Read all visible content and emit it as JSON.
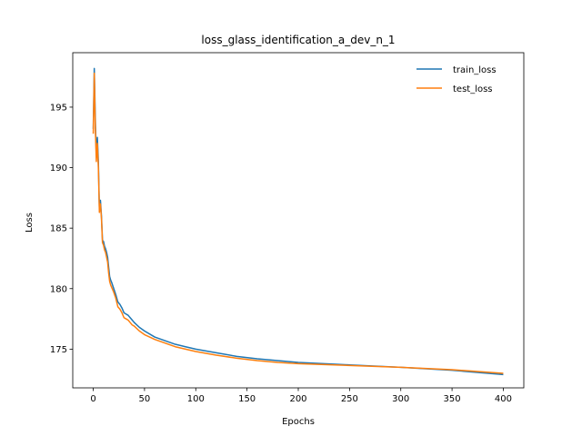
{
  "chart_data": {
    "type": "line",
    "title": "loss_glass_identification_a_dev_n_1",
    "xlabel": "Epochs",
    "ylabel": "Loss",
    "xlim": [
      -20,
      420
    ],
    "ylim": [
      171.8,
      199.5
    ],
    "xticks": [
      0,
      50,
      100,
      150,
      200,
      250,
      300,
      350,
      400
    ],
    "yticks": [
      175,
      180,
      185,
      190,
      195
    ],
    "grid": false,
    "legend_position": "top-right",
    "series": [
      {
        "name": "train_loss",
        "color": "#1f77b4",
        "x": [
          0,
          1,
          2,
          3,
          4,
          5,
          6,
          7,
          8,
          9,
          10,
          11,
          12,
          13,
          14,
          15,
          16,
          17,
          18,
          20,
          22,
          24,
          26,
          28,
          30,
          32,
          34,
          36,
          38,
          40,
          45,
          50,
          60,
          70,
          80,
          90,
          100,
          120,
          140,
          160,
          180,
          200,
          250,
          300,
          350,
          400
        ],
        "y": [
          193.2,
          198.2,
          194.0,
          191.0,
          192.5,
          190.5,
          186.5,
          187.3,
          186.0,
          184.0,
          183.9,
          183.5,
          183.3,
          183.0,
          182.6,
          181.8,
          181.0,
          180.7,
          180.5,
          180.0,
          179.5,
          178.9,
          178.7,
          178.4,
          178.0,
          177.9,
          177.8,
          177.6,
          177.4,
          177.2,
          176.8,
          176.5,
          176.0,
          175.7,
          175.4,
          175.2,
          175.0,
          174.7,
          174.4,
          174.2,
          174.05,
          173.9,
          173.7,
          173.5,
          173.25,
          172.9
        ]
      },
      {
        "name": "test_loss",
        "color": "#ff7f0e",
        "x": [
          0,
          1,
          2,
          3,
          4,
          5,
          6,
          7,
          8,
          9,
          10,
          11,
          12,
          13,
          14,
          15,
          16,
          17,
          18,
          20,
          22,
          24,
          26,
          28,
          30,
          32,
          34,
          36,
          38,
          40,
          45,
          50,
          60,
          70,
          80,
          90,
          100,
          120,
          140,
          160,
          180,
          200,
          250,
          300,
          350,
          400
        ],
        "y": [
          192.8,
          197.8,
          193.3,
          190.5,
          192.0,
          190.0,
          186.3,
          187.0,
          185.8,
          183.8,
          183.6,
          183.2,
          183.0,
          182.6,
          182.2,
          181.3,
          180.6,
          180.3,
          180.1,
          179.7,
          179.2,
          178.5,
          178.3,
          178.0,
          177.6,
          177.5,
          177.4,
          177.2,
          177.0,
          176.9,
          176.5,
          176.2,
          175.8,
          175.5,
          175.2,
          175.0,
          174.8,
          174.5,
          174.25,
          174.05,
          173.9,
          173.8,
          173.65,
          173.5,
          173.3,
          173.0
        ]
      }
    ]
  }
}
